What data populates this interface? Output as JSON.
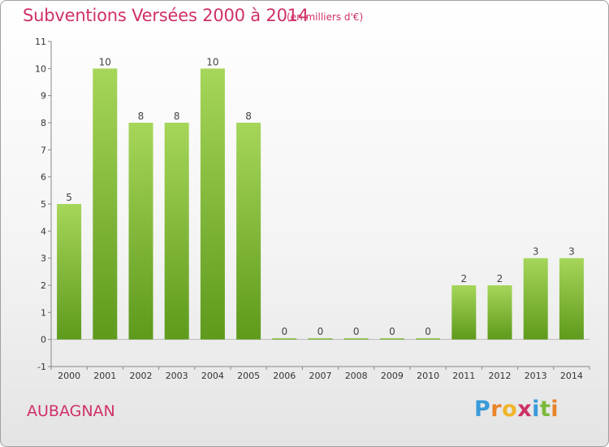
{
  "header": {
    "title": "Subventions Versées 2000 à 2014",
    "subtitle": "(en milliers d'€)"
  },
  "footer": {
    "commune": "AUBAGNAN",
    "logo_letters": [
      "P",
      "r",
      "o",
      "x",
      "i",
      "t",
      "i"
    ],
    "logo_colors": [
      "#3a9ad9",
      "#e8832a",
      "#f0b52a",
      "#cc3366",
      "#3a9ad9",
      "#7cb83a",
      "#e8832a"
    ]
  },
  "chart_data": {
    "type": "bar",
    "categories": [
      "2000",
      "2001",
      "2002",
      "2003",
      "2004",
      "2005",
      "2006",
      "2007",
      "2008",
      "2009",
      "2010",
      "2011",
      "2012",
      "2013",
      "2014"
    ],
    "values": [
      5,
      10,
      8,
      8,
      10,
      8,
      0,
      0,
      0,
      0,
      0,
      2,
      2,
      3,
      3
    ],
    "value_labels": [
      "5",
      "10",
      "8",
      "8",
      "10",
      "8",
      "0",
      "0",
      "0",
      "0",
      "0",
      "2",
      "2",
      "3",
      "3"
    ],
    "y_ticks": [
      "-1",
      "0",
      "1",
      "2",
      "3",
      "4",
      "5",
      "6",
      "7",
      "8",
      "9",
      "10",
      "11"
    ],
    "ylim": [
      -1,
      11
    ],
    "grid": false,
    "bar_color_light": "#a6d65a",
    "bar_color_dark": "#5e9a1c"
  }
}
